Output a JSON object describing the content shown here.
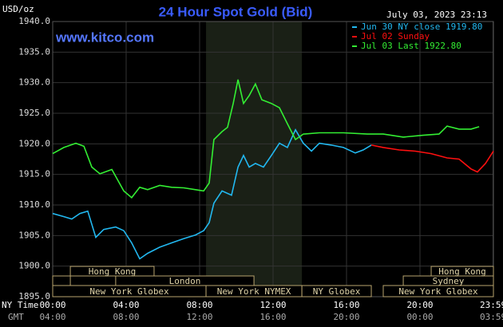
{
  "chart_data": {
    "type": "line",
    "title": "24 Hour Spot Gold (Bid)",
    "y_label": "USD/oz",
    "website": "www.kitco.com",
    "timestamp": "July 03, 2023 23:13",
    "x_row_label": "NY Time",
    "x2_row_label": "GMT",
    "xlim": [
      0,
      24
    ],
    "xticks": [
      {
        "value": 0,
        "label": "00:00"
      },
      {
        "value": 4,
        "label": "04:00"
      },
      {
        "value": 8,
        "label": "08:00"
      },
      {
        "value": 12,
        "label": "12:00"
      },
      {
        "value": 16,
        "label": "16:00"
      },
      {
        "value": 20,
        "label": "20:00"
      },
      {
        "value": 23.98,
        "label": "23:59"
      }
    ],
    "x2ticks": [
      "04:00",
      "08:00",
      "12:00",
      "16:00",
      "20:00",
      "00:00",
      "03:59"
    ],
    "ylim": [
      1895,
      1940
    ],
    "yticks": [
      {
        "value": 1895,
        "label": "1895.0"
      },
      {
        "value": 1900,
        "label": "1900.0"
      },
      {
        "value": 1905,
        "label": "1905.0"
      },
      {
        "value": 1910,
        "label": "1910.0"
      },
      {
        "value": 1915,
        "label": "1915.0"
      },
      {
        "value": 1920,
        "label": "1920.0"
      },
      {
        "value": 1925,
        "label": "1925.0"
      },
      {
        "value": 1930,
        "label": "1930.0"
      },
      {
        "value": 1935,
        "label": "1935.0"
      },
      {
        "value": 1940,
        "label": "1940.0"
      }
    ],
    "grid": true,
    "shaded_range": [
      8.35,
      13.57
    ],
    "sessions": [
      {
        "name": "Hong Kong",
        "start": 0.96,
        "end": 5.52
      },
      {
        "name": "Hong Kong",
        "start": 20.61,
        "end": 24
      },
      {
        "name": null,
        "start": 0,
        "end": 0.96
      },
      {
        "name": "London",
        "start": 3.43,
        "end": 10.96
      },
      {
        "name": "Sydney",
        "start": 19.09,
        "end": 24
      },
      {
        "name": "New York Globex",
        "start": 0,
        "end": 8.35
      },
      {
        "name": "New York NYMEX",
        "start": 8.35,
        "end": 13.57
      },
      {
        "name": "NY Globex",
        "start": 13.57,
        "end": 17.35
      },
      {
        "name": "New York Globex",
        "start": 18.0,
        "end": 24
      }
    ],
    "series": [
      {
        "name": "Jun 30 NY close 1919.80",
        "color": "#22b8f0",
        "x": [
          0,
          0.61,
          1.04,
          1.48,
          1.91,
          2.35,
          2.78,
          3.43,
          3.87,
          4.3,
          4.74,
          5.17,
          5.83,
          6.48,
          7.13,
          7.78,
          8.22,
          8.52,
          8.78,
          9.22,
          9.74,
          10.09,
          10.39,
          10.7,
          11.04,
          11.48,
          11.91,
          12.35,
          12.78,
          13.22,
          13.65,
          14.09,
          14.52,
          15.17,
          15.83,
          16.48,
          16.91,
          17.35
        ],
        "values": [
          1908.6,
          1908.1,
          1907.7,
          1908.6,
          1909.0,
          1904.7,
          1906.0,
          1906.4,
          1905.8,
          1903.8,
          1901.2,
          1902.1,
          1903.1,
          1903.8,
          1904.5,
          1905.1,
          1905.8,
          1907.1,
          1910.3,
          1912.3,
          1911.6,
          1916.2,
          1918.1,
          1916.2,
          1916.8,
          1916.2,
          1918.1,
          1920.1,
          1919.4,
          1922.3,
          1920.1,
          1918.8,
          1920.1,
          1919.8,
          1919.4,
          1918.5,
          1919.0,
          1919.8
        ]
      },
      {
        "name": "Jul 02 Sunday",
        "color": "#ff1010",
        "x": [
          17.35,
          18.0,
          18.87,
          19.74,
          20.61,
          21.48,
          22.13,
          22.78,
          23.13,
          23.57,
          24
        ],
        "values": [
          1919.8,
          1919.4,
          1919.0,
          1918.8,
          1918.4,
          1917.7,
          1917.5,
          1915.9,
          1915.4,
          1916.8,
          1918.8
        ]
      },
      {
        "name": "Jul 03 Last 1922.80",
        "color": "#33ee33",
        "x": [
          0,
          0.61,
          1.26,
          1.7,
          2.13,
          2.57,
          3.22,
          3.87,
          4.3,
          4.74,
          5.17,
          5.83,
          6.48,
          7.13,
          7.78,
          8.22,
          8.52,
          8.78,
          9.22,
          9.52,
          9.83,
          10.09,
          10.39,
          10.7,
          11.04,
          11.39,
          11.91,
          12.35,
          12.78,
          13.22,
          13.65,
          14.52,
          15.83,
          17.13,
          18.0,
          19.09,
          20.17,
          21.04,
          21.48,
          22.13,
          22.78,
          23.22
        ],
        "values": [
          1918.4,
          1919.4,
          1920.1,
          1919.6,
          1916.2,
          1915.1,
          1915.8,
          1912.3,
          1911.2,
          1912.9,
          1912.5,
          1913.2,
          1912.9,
          1912.8,
          1912.5,
          1912.3,
          1913.6,
          1920.7,
          1922.0,
          1922.7,
          1926.6,
          1930.5,
          1926.6,
          1927.9,
          1929.8,
          1927.2,
          1926.6,
          1925.9,
          1923.3,
          1920.7,
          1921.6,
          1921.8,
          1921.8,
          1921.6,
          1921.6,
          1921.1,
          1921.4,
          1921.6,
          1922.9,
          1922.4,
          1922.4,
          1922.8
        ]
      }
    ]
  }
}
